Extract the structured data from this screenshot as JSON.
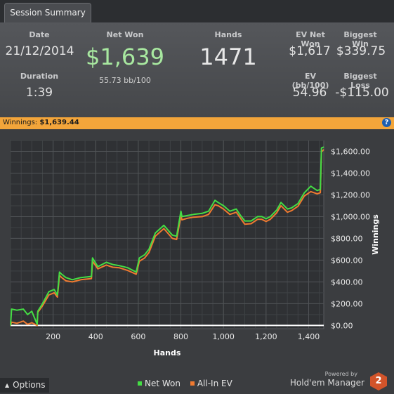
{
  "tab": {
    "label": "Session Summary"
  },
  "summary": {
    "date": {
      "label": "Date",
      "value": "21/12/2014"
    },
    "duration": {
      "label": "Duration",
      "value": "1:39"
    },
    "net_won": {
      "label": "Net Won",
      "value": "$1,639",
      "sub": "55.73 bb/100"
    },
    "hands": {
      "label": "Hands",
      "value": "1471"
    },
    "ev_net_won": {
      "label": "EV Net Won",
      "value": "$1,617"
    },
    "biggest_win": {
      "label": "Biggest Win",
      "value": "$339.75"
    },
    "ev_bb100": {
      "label": "EV (bb/100)",
      "value": "54.96"
    },
    "biggest_loss": {
      "label": "Biggest Loss",
      "value": "-$115.00"
    }
  },
  "banner": {
    "label": "Winnings:",
    "value": "$1,639.44",
    "help": "?"
  },
  "colors": {
    "net_won": "#44dd44",
    "all_in_ev": "#f07a30",
    "accent": "#f3a53a",
    "net_won_text": "#a8e8a0"
  },
  "chart_data": {
    "type": "line",
    "xlabel": "Hands",
    "ylabel": "Winnings",
    "xlim": [
      0,
      1471
    ],
    "ylim": [
      -30,
      1700
    ],
    "x_ticks": [
      200,
      400,
      600,
      800,
      1000,
      1200,
      1400
    ],
    "x_tick_labels": [
      "200",
      "400",
      "600",
      "800",
      "1,000",
      "1,200",
      "1,400"
    ],
    "y_ticks": [
      0,
      200,
      400,
      600,
      800,
      1000,
      1200,
      1400,
      1600
    ],
    "y_tick_labels": [
      "$0.00",
      "$200.00",
      "$400.00",
      "$600.00",
      "$800.00",
      "$1,000.00",
      "$1,200.00",
      "$1,400.00",
      "$1,600.00"
    ],
    "series": [
      {
        "name": "Net Won",
        "color": "#44dd44",
        "x": [
          0,
          5,
          30,
          60,
          80,
          100,
          125,
          128,
          150,
          180,
          205,
          220,
          230,
          240,
          260,
          290,
          330,
          380,
          385,
          410,
          450,
          480,
          510,
          550,
          590,
          605,
          630,
          650,
          680,
          720,
          760,
          780,
          800,
          805,
          830,
          860,
          900,
          930,
          960,
          975,
          1000,
          1030,
          1060,
          1080,
          1100,
          1130,
          1160,
          1180,
          1200,
          1220,
          1250,
          1270,
          1300,
          1320,
          1350,
          1380,
          1410,
          1440,
          1455,
          1460,
          1471
        ],
        "y": [
          0,
          150,
          140,
          150,
          100,
          130,
          10,
          130,
          200,
          310,
          330,
          280,
          490,
          470,
          440,
          420,
          440,
          450,
          620,
          540,
          580,
          560,
          550,
          530,
          490,
          620,
          650,
          700,
          850,
          920,
          830,
          820,
          1050,
          1000,
          1010,
          1020,
          1030,
          1050,
          1150,
          1130,
          1100,
          1050,
          1070,
          1010,
          960,
          960,
          1000,
          1000,
          980,
          1000,
          1060,
          1130,
          1070,
          1080,
          1120,
          1220,
          1280,
          1240,
          1250,
          1630,
          1640
        ]
      },
      {
        "name": "All-In EV",
        "color": "#f07a30",
        "x": [
          0,
          5,
          30,
          60,
          80,
          100,
          125,
          128,
          150,
          180,
          205,
          220,
          230,
          240,
          260,
          290,
          330,
          380,
          385,
          410,
          450,
          480,
          510,
          550,
          590,
          605,
          630,
          650,
          680,
          720,
          760,
          780,
          800,
          805,
          830,
          860,
          900,
          930,
          960,
          975,
          1000,
          1030,
          1060,
          1080,
          1100,
          1130,
          1160,
          1180,
          1200,
          1220,
          1250,
          1270,
          1300,
          1320,
          1350,
          1380,
          1410,
          1440,
          1455,
          1460,
          1471
        ],
        "y": [
          0,
          30,
          20,
          40,
          10,
          25,
          0,
          120,
          180,
          280,
          300,
          260,
          460,
          440,
          410,
          400,
          420,
          430,
          590,
          520,
          555,
          535,
          530,
          505,
          470,
          590,
          620,
          670,
          820,
          890,
          800,
          790,
          1010,
          970,
          985,
          995,
          1000,
          1020,
          1110,
          1100,
          1070,
          1020,
          1040,
          985,
          930,
          935,
          975,
          975,
          955,
          975,
          1035,
          1100,
          1040,
          1055,
          1095,
          1190,
          1230,
          1210,
          1220,
          1595,
          1617
        ]
      }
    ],
    "legend": "bottom"
  },
  "footer": {
    "options_label": "Options",
    "options_icon": "caret-up-icon",
    "powered_by": "Powered by",
    "brand": "Hold'em Manager",
    "brand_num": "2"
  }
}
